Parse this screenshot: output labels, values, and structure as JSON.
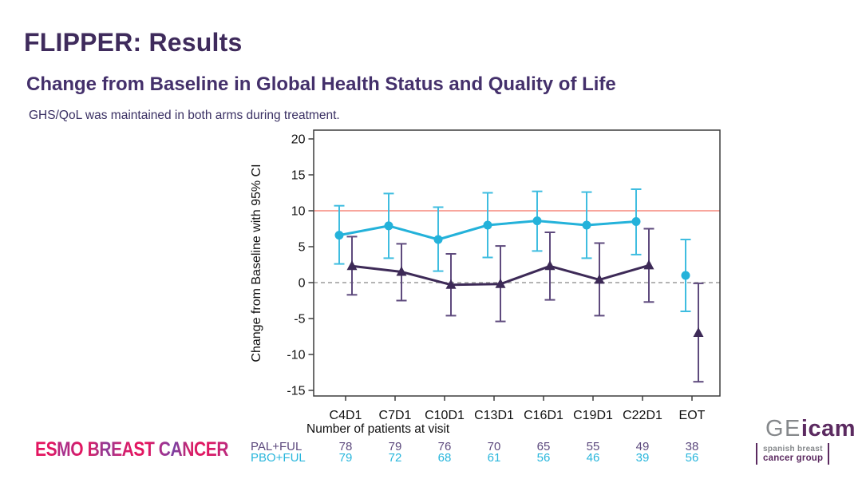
{
  "slide": {
    "title": "FLIPPER: Results",
    "subtitle": "Change from Baseline in Global Health Status and Quality of Life",
    "note": "GHS/QoL was maintained in both arms during treatment."
  },
  "chart_data": {
    "type": "line",
    "title": "",
    "xlabel": "",
    "ylabel": "Change from Baseline with 95% CI",
    "categories": [
      "C4D1",
      "C7D1",
      "C10D1",
      "C13D1",
      "C16D1",
      "C19D1",
      "C22D1",
      "EOT"
    ],
    "y_ticks": [
      20,
      15,
      10,
      5,
      0,
      -5,
      -10,
      -15
    ],
    "ylim": [
      -16,
      21.2
    ],
    "grid": false,
    "legend_position": "none",
    "connected_points": 7,
    "reference_lines": [
      {
        "y": 10,
        "color": "#f5897d",
        "style": "solid"
      },
      {
        "y": 0,
        "color": "#9b9b9b",
        "style": "dashed"
      }
    ],
    "series": [
      {
        "name": "PAL+FUL",
        "marker": "triangle",
        "color": "#3d2a57",
        "ci_color": "#5e4a7d",
        "x_offset": 8,
        "values": [
          2.3,
          1.5,
          -0.3,
          -0.2,
          2.3,
          0.4,
          2.4,
          -7.0
        ],
        "ci_low": [
          -1.7,
          -2.5,
          -4.6,
          -5.4,
          -2.4,
          -4.6,
          -2.7,
          -13.8
        ],
        "ci_high": [
          6.4,
          5.4,
          4.0,
          5.1,
          7.0,
          5.5,
          7.5,
          -0.1
        ]
      },
      {
        "name": "PBO+FUL",
        "marker": "circle",
        "color": "#24b2da",
        "ci_color": "#3fbde0",
        "x_offset": -8,
        "values": [
          6.6,
          7.9,
          6.0,
          8.0,
          8.6,
          8.0,
          8.5,
          1.0
        ],
        "ci_low": [
          2.6,
          3.4,
          1.6,
          3.5,
          4.4,
          3.4,
          3.9,
          -4.0
        ],
        "ci_high": [
          10.7,
          12.4,
          10.5,
          12.5,
          12.7,
          12.6,
          13.0,
          6.0
        ]
      }
    ],
    "patients_table": {
      "label": "Number of patients at visit",
      "rows": [
        {
          "name": "PAL+FUL",
          "color": "#5d4a7e",
          "values": [
            78,
            79,
            76,
            70,
            65,
            55,
            49,
            38
          ]
        },
        {
          "name": "PBO+FUL",
          "color": "#29b6dc",
          "values": [
            79,
            72,
            68,
            61,
            56,
            46,
            39,
            56
          ]
        }
      ]
    }
  },
  "footer": {
    "esmo_logo": "ESMO BREAST CANCER",
    "geicam": {
      "prefix": "GE",
      "suffix": "icam",
      "line1": "spanish breast",
      "line2": "cancer group"
    }
  },
  "colors": {
    "title": "#3f2b5c",
    "subtitle": "#44306b",
    "axis": "#3d3d3d",
    "pal_ful": "#3d2a57",
    "pbo_ful": "#24b2da",
    "threshold_line": "#f5897d",
    "zero_line": "#9b9b9b",
    "geicam_purple": "#5b2a60",
    "geicam_gray": "#85888b"
  }
}
